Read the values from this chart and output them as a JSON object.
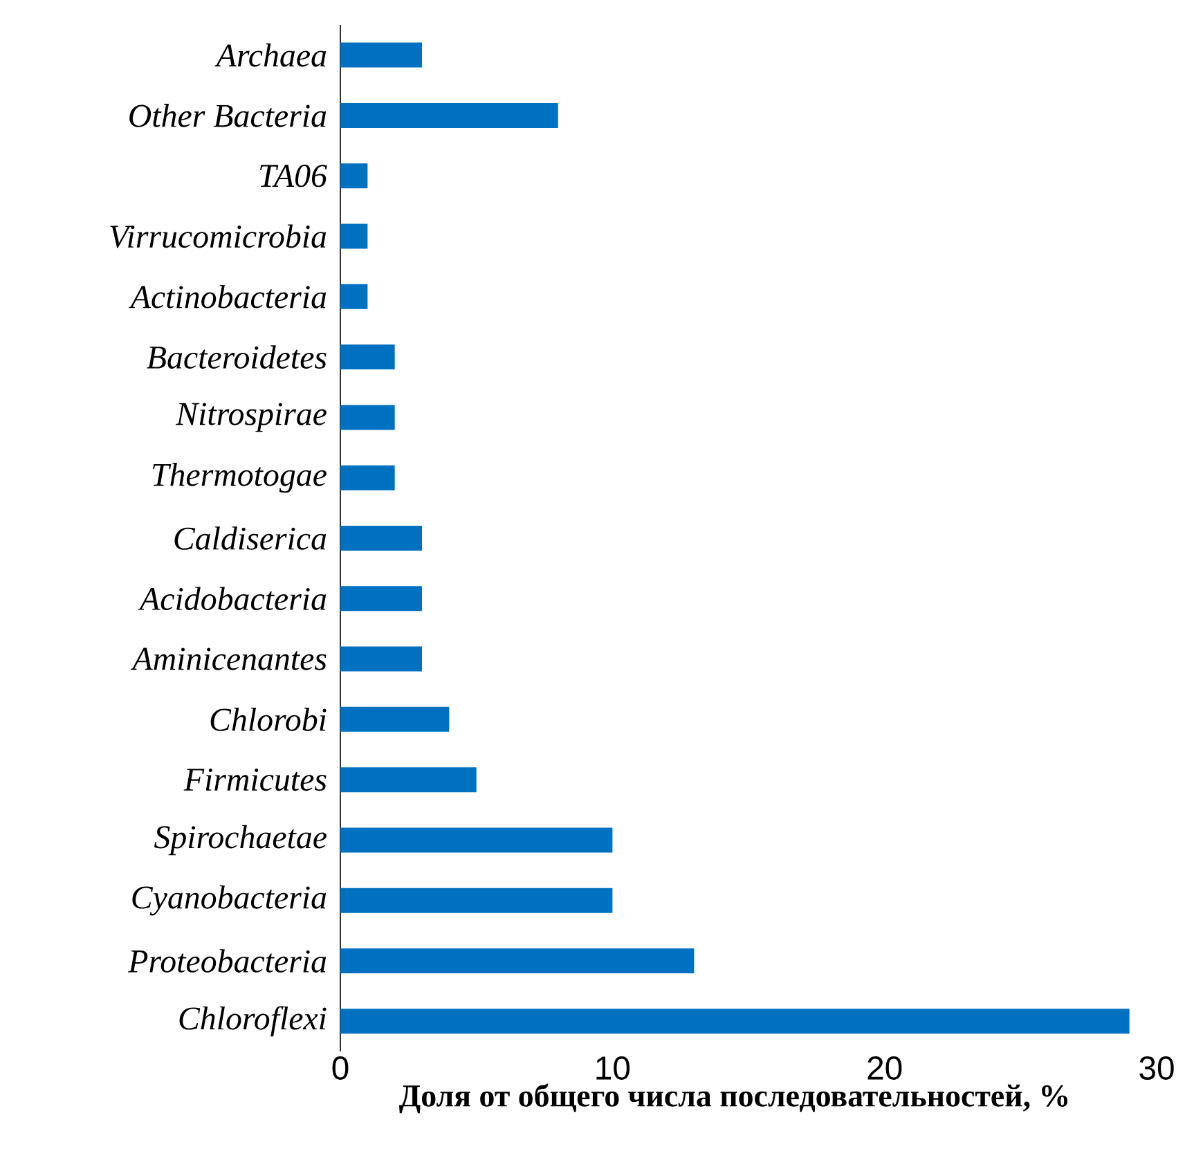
{
  "chart_data": {
    "type": "bar",
    "orientation": "horizontal",
    "xlabel": "Доля от общего числа последовательностей, %",
    "categories": [
      "Archaea",
      "Other Bacteria",
      "TA06",
      "Virrucomicrobia",
      "Actinobacteria",
      "Bacteroidetes",
      "Nitrospirae",
      "Thermotogae",
      "Caldiserica",
      "Acidobacteria",
      "Aminicenantes",
      "Chlorobi",
      "Firmicutes",
      "Spirochaetae",
      "Cyanobacteria",
      "Proteobacteria",
      "Chloroflexi"
    ],
    "values": [
      3,
      8,
      1,
      1,
      1,
      2,
      2,
      2,
      3,
      3,
      3,
      4,
      5,
      10,
      10,
      13,
      29
    ],
    "color": "#0070c0",
    "xlim": [
      0,
      30
    ],
    "xticks": [
      0,
      10,
      20,
      30
    ]
  }
}
